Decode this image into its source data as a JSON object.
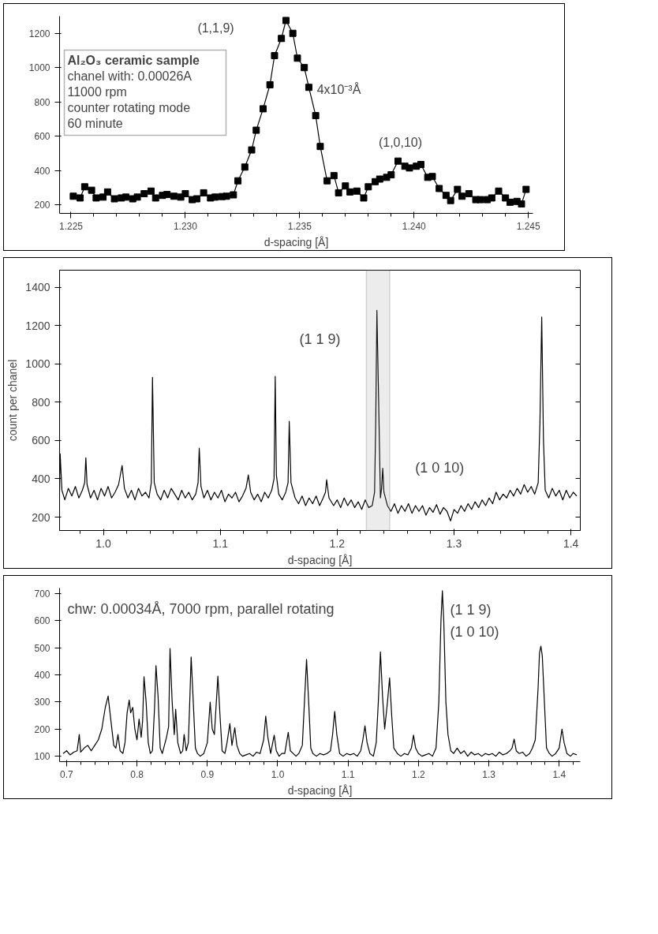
{
  "chart_data": [
    {
      "type": "line",
      "title": "Al₂O₃ ceramic sample",
      "xlabel": "d-spacing [Å]",
      "marker": "square",
      "color": "#000000",
      "annotations": [
        "chanel with: 0.00026A",
        "11000 rpm",
        "counter rotating mode",
        "60 minute",
        "(1,1,9)",
        "4x10⁻³Å",
        "(1,0,10)"
      ],
      "x": [
        1.2251,
        1.2254,
        1.2256,
        1.2259,
        1.2261,
        1.2264,
        1.2266,
        1.2269,
        1.2272,
        1.2274,
        1.2277,
        1.2279,
        1.2282,
        1.2285,
        1.2287,
        1.229,
        1.2292,
        1.2295,
        1.2298,
        1.23,
        1.2303,
        1.2305,
        1.2308,
        1.2311,
        1.2313,
        1.2316,
        1.2318,
        1.2321,
        1.2323,
        1.2326,
        1.2329,
        1.2331,
        1.2334,
        1.2337,
        1.2339,
        1.2342,
        1.2344,
        1.2347,
        1.2349,
        1.2352,
        1.2354,
        1.2357,
        1.2359,
        1.2362,
        1.2365,
        1.2367,
        1.237,
        1.2372,
        1.2375,
        1.2378,
        1.238,
        1.2383,
        1.2385,
        1.2388,
        1.239,
        1.2393,
        1.2396,
        1.2398,
        1.2401,
        1.2403,
        1.2406,
        1.2408,
        1.2411,
        1.2414,
        1.2416,
        1.2419,
        1.2421,
        1.2424,
        1.2427,
        1.2429,
        1.2432,
        1.2434,
        1.2437,
        1.244,
        1.2442,
        1.2445,
        1.2447,
        1.2449
      ],
      "values": [
        250,
        240,
        305,
        285,
        240,
        245,
        275,
        235,
        240,
        245,
        235,
        245,
        265,
        280,
        240,
        255,
        260,
        250,
        245,
        265,
        230,
        235,
        270,
        240,
        245,
        248,
        250,
        258,
        340,
        420,
        520,
        635,
        760,
        900,
        1070,
        1170,
        1275,
        1200,
        1055,
        1000,
        885,
        720,
        540,
        340,
        370,
        270,
        310,
        275,
        280,
        240,
        305,
        335,
        350,
        360,
        375,
        455,
        425,
        415,
        425,
        435,
        360,
        365,
        295,
        255,
        225,
        290,
        250,
        265,
        230,
        230,
        230,
        240,
        280,
        240,
        215,
        220,
        205,
        290
      ],
      "xlim": [
        1.2245,
        1.2452
      ],
      "ylim": [
        150,
        1300
      ],
      "xticks": [
        1.225,
        {
          "value": 1.23,
          "label": "1.230"
        },
        1.235,
        {
          "value": 1.24,
          "label": "1.240"
        },
        1.245
      ],
      "yticks": [
        200,
        400,
        600,
        800,
        1000,
        1200
      ]
    },
    {
      "type": "line",
      "xlabel": "d-spacing [Å]",
      "ylabel": "count per chanel",
      "color": "#000000",
      "annotations": [
        "(1 1 9)",
        "(1 0 10)"
      ],
      "bands": [
        {
          "axis": "x",
          "from": 1.225,
          "to": 1.245,
          "color": "#808080"
        }
      ],
      "x": [
        0.9625,
        0.963,
        0.9645,
        0.967,
        0.97,
        0.973,
        0.976,
        0.979,
        0.982,
        0.984,
        0.985,
        0.986,
        0.989,
        0.992,
        0.995,
        0.998,
        1.001,
        1.004,
        1.007,
        1.01,
        1.013,
        1.016,
        1.018,
        1.021,
        1.024,
        1.027,
        1.03,
        1.033,
        1.036,
        1.039,
        1.041,
        1.042,
        1.0435,
        1.046,
        1.049,
        1.052,
        1.055,
        1.058,
        1.061,
        1.064,
        1.067,
        1.07,
        1.073,
        1.076,
        1.079,
        1.081,
        1.082,
        1.0835,
        1.086,
        1.089,
        1.092,
        1.095,
        1.098,
        1.101,
        1.104,
        1.107,
        1.11,
        1.113,
        1.116,
        1.119,
        1.122,
        1.124,
        1.126,
        1.129,
        1.132,
        1.135,
        1.138,
        1.141,
        1.144,
        1.146,
        1.147,
        1.148,
        1.15,
        1.153,
        1.156,
        1.158,
        1.159,
        1.1605,
        1.164,
        1.167,
        1.17,
        1.173,
        1.176,
        1.179,
        1.182,
        1.185,
        1.188,
        1.19,
        1.191,
        1.193,
        1.197,
        1.2,
        1.203,
        1.206,
        1.209,
        1.212,
        1.215,
        1.218,
        1.221,
        1.224,
        1.227,
        1.23,
        1.232,
        1.233,
        1.234,
        1.2355,
        1.237,
        1.238,
        1.239,
        1.24,
        1.243,
        1.246,
        1.249,
        1.252,
        1.255,
        1.258,
        1.261,
        1.264,
        1.267,
        1.27,
        1.273,
        1.276,
        1.279,
        1.282,
        1.285,
        1.288,
        1.291,
        1.294,
        1.297,
        1.3,
        1.303,
        1.306,
        1.309,
        1.312,
        1.315,
        1.318,
        1.321,
        1.324,
        1.327,
        1.33,
        1.333,
        1.336,
        1.339,
        1.342,
        1.345,
        1.348,
        1.351,
        1.354,
        1.357,
        1.36,
        1.363,
        1.366,
        1.369,
        1.372,
        1.3735,
        1.375,
        1.3765,
        1.378,
        1.381,
        1.384,
        1.387,
        1.39,
        1.393,
        1.396,
        1.399,
        1.402,
        1.405
      ],
      "values": [
        330,
        530,
        340,
        290,
        350,
        310,
        360,
        300,
        340,
        380,
        510,
        370,
        300,
        340,
        290,
        350,
        310,
        360,
        300,
        330,
        370,
        470,
        350,
        300,
        340,
        290,
        350,
        310,
        330,
        300,
        380,
        930,
        380,
        320,
        290,
        340,
        300,
        350,
        320,
        290,
        340,
        300,
        330,
        290,
        320,
        380,
        560,
        360,
        300,
        340,
        290,
        330,
        300,
        340,
        280,
        320,
        300,
        330,
        280,
        310,
        350,
        420,
        330,
        290,
        320,
        280,
        330,
        300,
        340,
        400,
        935,
        420,
        320,
        290,
        330,
        380,
        700,
        380,
        300,
        270,
        310,
        260,
        300,
        270,
        310,
        260,
        300,
        330,
        395,
        300,
        260,
        290,
        250,
        300,
        260,
        290,
        250,
        280,
        240,
        290,
        250,
        260,
        330,
        700,
        1280,
        800,
        300,
        350,
        455,
        330,
        260,
        230,
        270,
        220,
        260,
        230,
        270,
        220,
        260,
        230,
        260,
        210,
        250,
        225,
        265,
        215,
        250,
        230,
        180,
        240,
        220,
        260,
        230,
        270,
        240,
        280,
        250,
        290,
        260,
        300,
        270,
        330,
        290,
        320,
        300,
        340,
        310,
        350,
        320,
        370,
        330,
        360,
        320,
        380,
        700,
        1245,
        600,
        340,
        300,
        350,
        310,
        340,
        290,
        340,
        300,
        330,
        310
      ],
      "xlim": [
        0.9625,
        1.408
      ],
      "ylim": [
        130,
        1490
      ],
      "xticks": [
        {
          "value": 1.0,
          "label": "1.0"
        },
        1.1,
        1.2,
        1.3,
        1.4
      ],
      "yticks": [
        200,
        400,
        600,
        800,
        1000,
        1200,
        1400
      ]
    },
    {
      "type": "line",
      "xlabel": "d-spacing [Å]",
      "color": "#000000",
      "annotations": [
        "chw: 0.00034Å, 7000 rpm, parallel rotating",
        "(1 1 9)",
        "(1 0 10)"
      ],
      "x": [
        0.695,
        0.7,
        0.705,
        0.71,
        0.715,
        0.718,
        0.72,
        0.725,
        0.73,
        0.735,
        0.74,
        0.745,
        0.75,
        0.755,
        0.759,
        0.763,
        0.767,
        0.77,
        0.773,
        0.776,
        0.78,
        0.783,
        0.786,
        0.789,
        0.791,
        0.794,
        0.797,
        0.8,
        0.803,
        0.806,
        0.808,
        0.81,
        0.813,
        0.816,
        0.819,
        0.822,
        0.825,
        0.827,
        0.83,
        0.833,
        0.836,
        0.839,
        0.842,
        0.845,
        0.847,
        0.85,
        0.853,
        0.855,
        0.858,
        0.862,
        0.865,
        0.867,
        0.87,
        0.873,
        0.875,
        0.877,
        0.88,
        0.883,
        0.886,
        0.89,
        0.895,
        0.9,
        0.904,
        0.907,
        0.91,
        0.915,
        0.918,
        0.921,
        0.925,
        0.928,
        0.932,
        0.935,
        0.939,
        0.942,
        0.946,
        0.95,
        0.955,
        0.96,
        0.965,
        0.97,
        0.975,
        0.98,
        0.983,
        0.986,
        0.99,
        0.995,
        0.998,
        1.002,
        1.006,
        1.01,
        1.015,
        1.018,
        1.022,
        1.026,
        1.03,
        1.035,
        1.038,
        1.041,
        1.044,
        1.047,
        1.05,
        1.055,
        1.06,
        1.065,
        1.07,
        1.075,
        1.078,
        1.081,
        1.084,
        1.088,
        1.093,
        1.098,
        1.103,
        1.108,
        1.113,
        1.118,
        1.121,
        1.124,
        1.127,
        1.131,
        1.136,
        1.14,
        1.143,
        1.146,
        1.149,
        1.152,
        1.156,
        1.159,
        1.162,
        1.165,
        1.17,
        1.175,
        1.18,
        1.185,
        1.19,
        1.193,
        1.196,
        1.2,
        1.205,
        1.21,
        1.215,
        1.22,
        1.225,
        1.229,
        1.232,
        1.234,
        1.236,
        1.239,
        1.242,
        1.246,
        1.25,
        1.255,
        1.26,
        1.265,
        1.27,
        1.275,
        1.28,
        1.285,
        1.29,
        1.295,
        1.3,
        1.305,
        1.31,
        1.315,
        1.32,
        1.325,
        1.33,
        1.333,
        1.336,
        1.339,
        1.343,
        1.348,
        1.353,
        1.358,
        1.362,
        1.366,
        1.37,
        1.372,
        1.374,
        1.376,
        1.379,
        1.382,
        1.386,
        1.39,
        1.395,
        1.4,
        1.404,
        1.407,
        1.411,
        1.416,
        1.42,
        1.425
      ],
      "values": [
        110,
        120,
        105,
        115,
        120,
        180,
        115,
        130,
        140,
        120,
        140,
        160,
        200,
        280,
        322,
        230,
        140,
        130,
        180,
        120,
        110,
        150,
        260,
        307,
        260,
        280,
        200,
        160,
        237,
        170,
        230,
        393,
        300,
        150,
        110,
        120,
        280,
        434,
        320,
        130,
        110,
        140,
        170,
        210,
        497,
        300,
        180,
        273,
        150,
        110,
        120,
        180,
        120,
        150,
        300,
        466,
        300,
        130,
        110,
        100,
        110,
        150,
        299,
        200,
        180,
        395,
        250,
        120,
        110,
        150,
        220,
        140,
        205,
        140,
        110,
        100,
        105,
        110,
        100,
        115,
        110,
        160,
        248,
        170,
        110,
        178,
        120,
        100,
        110,
        110,
        188,
        120,
        110,
        100,
        110,
        140,
        300,
        457,
        300,
        130,
        110,
        100,
        110,
        105,
        110,
        120,
        180,
        265,
        180,
        110,
        100,
        110,
        105,
        110,
        100,
        120,
        160,
        212,
        150,
        110,
        100,
        150,
        300,
        485,
        320,
        200,
        300,
        389,
        250,
        130,
        110,
        100,
        110,
        105,
        130,
        178,
        130,
        110,
        100,
        105,
        110,
        100,
        130,
        300,
        600,
        710,
        600,
        300,
        180,
        120,
        110,
        130,
        110,
        120,
        100,
        115,
        105,
        110,
        100,
        110,
        105,
        110,
        100,
        115,
        105,
        110,
        120,
        130,
        163,
        120,
        110,
        115,
        100,
        110,
        130,
        160,
        350,
        480,
        506,
        470,
        300,
        130,
        110,
        100,
        110,
        130,
        200,
        150,
        110,
        100,
        110,
        105
      ],
      "xlim": [
        0.69,
        1.43
      ],
      "ylim": [
        80,
        720
      ],
      "xticks": [
        0.7,
        0.8,
        0.9,
        {
          "value": 1.0,
          "label": "1.0"
        },
        1.1,
        1.2,
        1.3,
        1.4
      ],
      "yticks": [
        100,
        200,
        300,
        400,
        500,
        600,
        700
      ]
    }
  ]
}
